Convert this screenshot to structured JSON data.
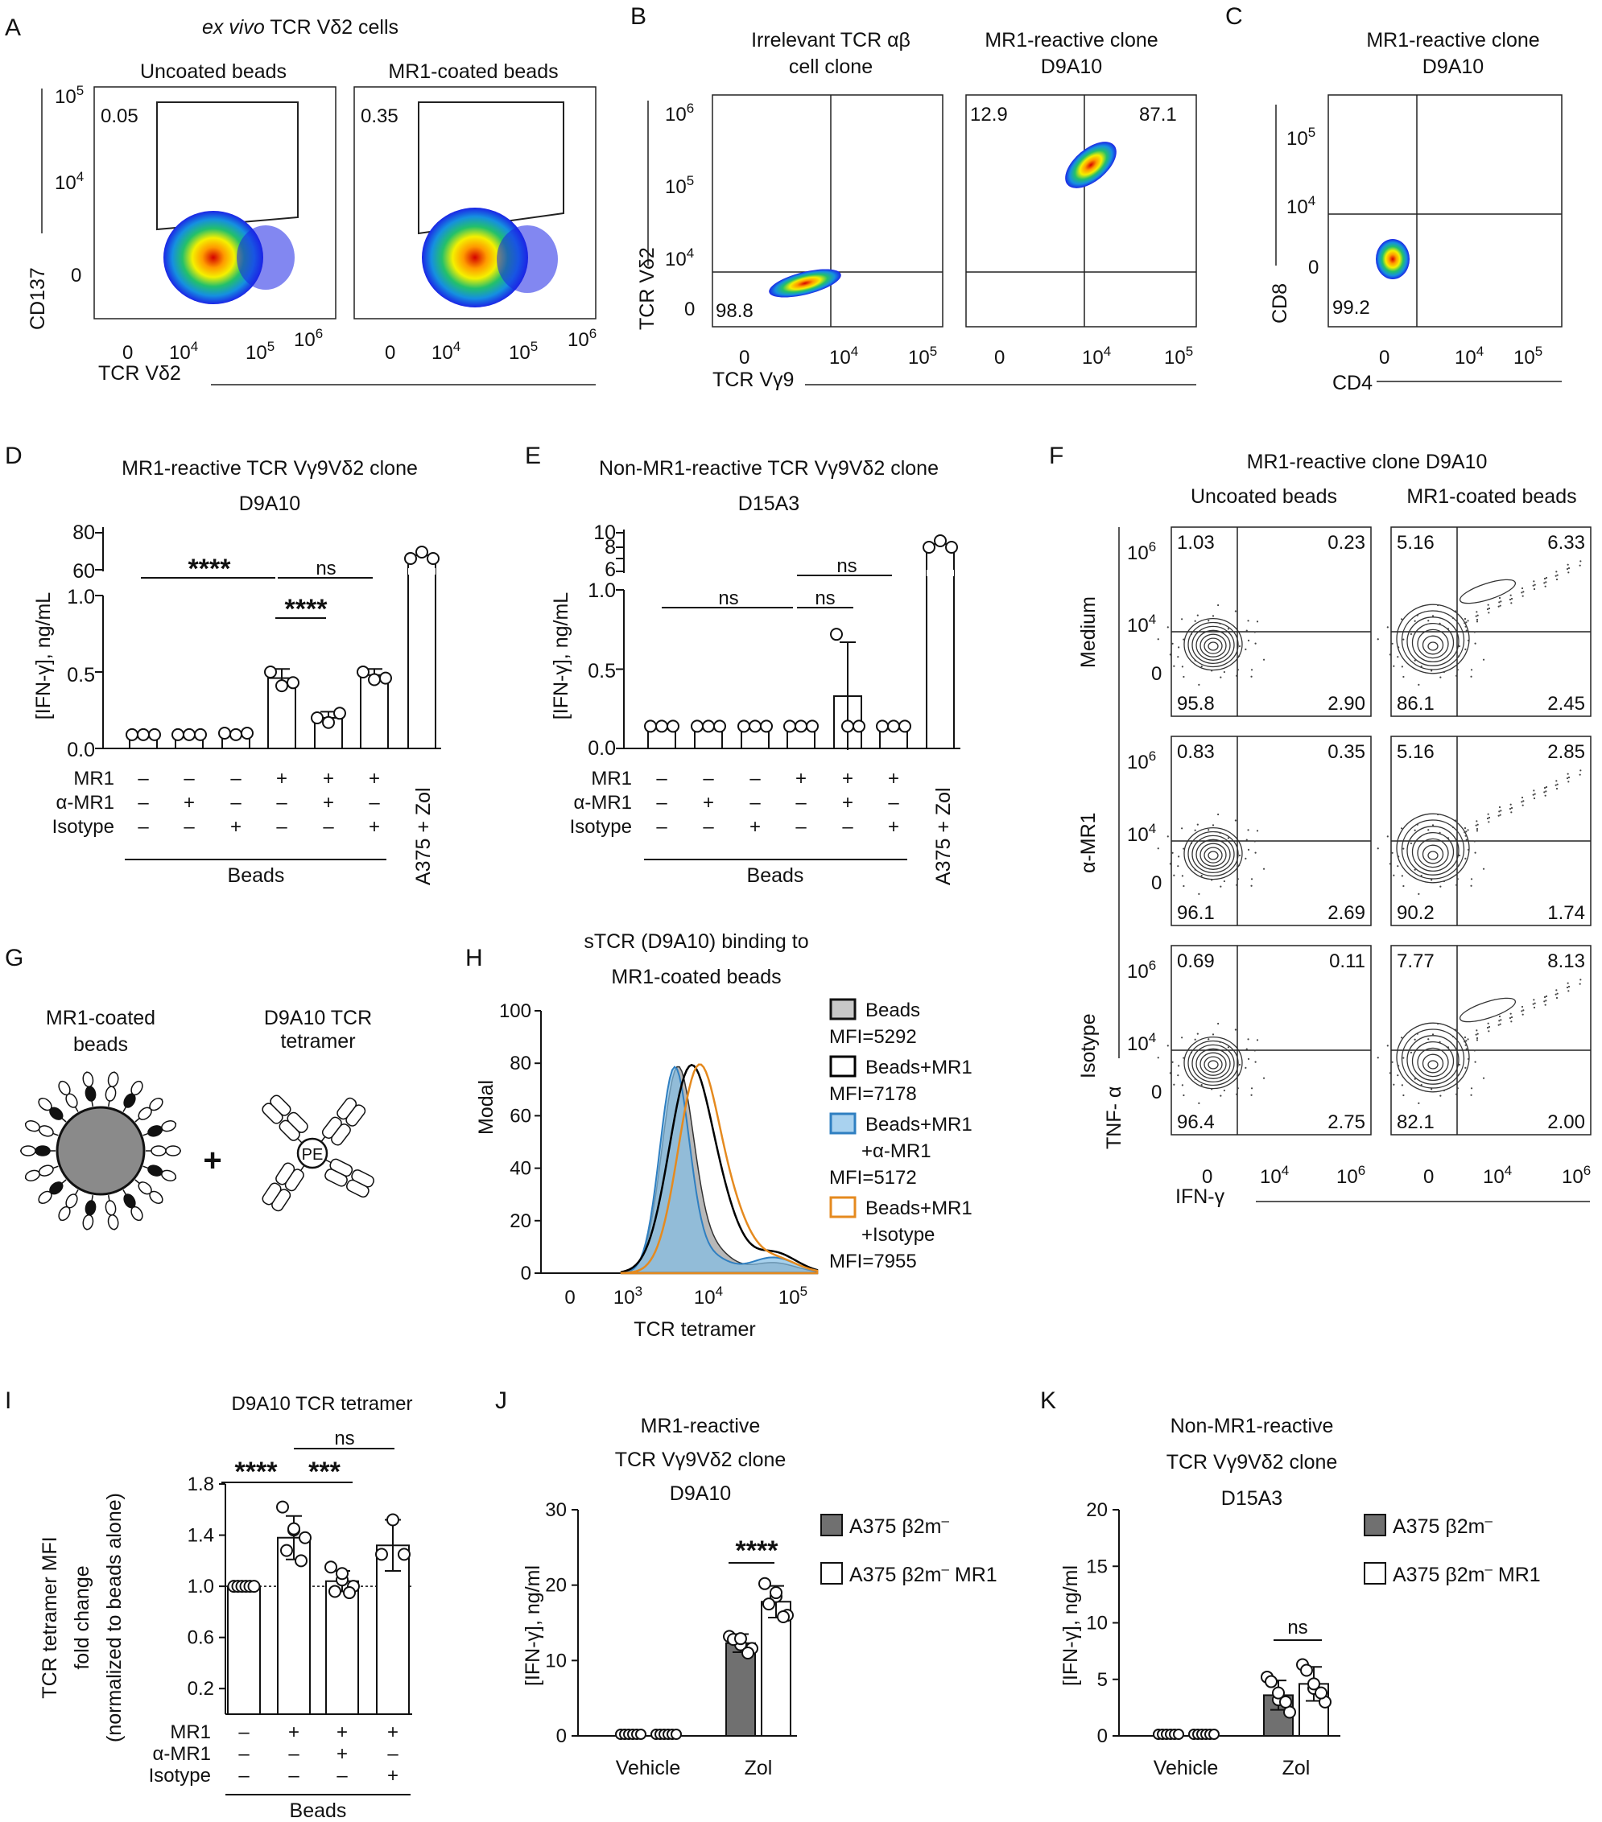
{
  "panels": {
    "A": {
      "letter": "A",
      "title_italic": "ex vivo",
      "title_rest": " TCR Vδ2 cells",
      "sub": [
        "Uncoated beads",
        "MR1-coated beads"
      ],
      "gate_values": [
        "0.05",
        "0.35"
      ],
      "ylabel": "CD137",
      "xlabel": "TCR Vδ2",
      "y_ticks": [
        "10",
        "10",
        "0"
      ],
      "y_exp": [
        "5",
        "4",
        ""
      ],
      "x_ticks": [
        "0",
        "10",
        "10",
        "10"
      ],
      "x_exp": [
        "",
        "4",
        "5",
        "6"
      ]
    },
    "B": {
      "letter": "B",
      "sub": [
        [
          "Irrelevant TCR αβ",
          "cell clone"
        ],
        [
          "MR1-reactive clone",
          "D9A10"
        ]
      ],
      "quad_values": [
        "98.8",
        "12.9",
        "87.1"
      ],
      "ylabel": "TCR Vδ2",
      "xlabel": "TCR Vγ9",
      "y_ticks": [
        "10",
        "10",
        "10",
        "0"
      ],
      "y_exp": [
        "6",
        "5",
        "4",
        ""
      ],
      "x_ticks": [
        "0",
        "10",
        "10"
      ],
      "x_exp": [
        "",
        "4",
        "5"
      ]
    },
    "C": {
      "letter": "C",
      "sub": [
        "MR1-reactive clone",
        "D9A10"
      ],
      "quad_values": [
        "99.2"
      ],
      "ylabel": "CD8",
      "xlabel": "CD4",
      "y_ticks": [
        "10",
        "10",
        "0"
      ],
      "y_exp": [
        "5",
        "4",
        ""
      ],
      "x_ticks": [
        "0",
        "10",
        "10"
      ],
      "x_exp": [
        "",
        "4",
        "5"
      ]
    },
    "D": {
      "letter": "D",
      "title": [
        "MR1-reactive TCR Vγ9Vδ2 clone",
        "D9A10"
      ],
      "ylabel": "[IFN-γ], ng/mL",
      "y_ticks": [
        "80",
        "60",
        "1.0",
        "0.5",
        "0.0"
      ],
      "sig": [
        "****",
        "ns",
        "****"
      ],
      "row_labels": [
        "MR1",
        "α-MR1",
        "Isotype"
      ],
      "signs": [
        [
          "–",
          "–",
          "–",
          "+",
          "+",
          "+"
        ],
        [
          "–",
          "+",
          "–",
          "–",
          "+",
          "–"
        ],
        [
          "–",
          "–",
          "+",
          "–",
          "–",
          "+"
        ]
      ],
      "group_label": "Beads",
      "control_label": "A375 + Zol"
    },
    "E": {
      "letter": "E",
      "title": [
        "Non-MR1-reactive TCR Vγ9Vδ2 clone",
        "D15A3"
      ],
      "ylabel": "[IFN-γ], ng/mL",
      "y_ticks": [
        "10",
        "8",
        "6",
        "1.0",
        "0.5",
        "0.0"
      ],
      "sig": [
        "ns",
        "ns",
        "ns"
      ],
      "row_labels": [
        "MR1",
        "α-MR1",
        "Isotype"
      ],
      "signs": [
        [
          "–",
          "–",
          "–",
          "+",
          "+",
          "+"
        ],
        [
          "–",
          "+",
          "–",
          "–",
          "+",
          "–"
        ],
        [
          "–",
          "–",
          "+",
          "–",
          "–",
          "+"
        ]
      ],
      "group_label": "Beads",
      "control_label": "A375 + Zol"
    },
    "F": {
      "letter": "F",
      "title": "MR1-reactive clone D9A10",
      "cols": [
        "Uncoated beads",
        "MR1-coated beads"
      ],
      "rows": [
        "Medium",
        "α-MR1",
        "Isotype"
      ],
      "quadrants": [
        [
          [
            "1.03",
            "0.23",
            "95.8",
            "2.90"
          ],
          [
            "5.16",
            "6.33",
            "86.1",
            "2.45"
          ]
        ],
        [
          [
            "0.83",
            "0.35",
            "96.1",
            "2.69"
          ],
          [
            "5.16",
            "2.85",
            "90.2",
            "1.74"
          ]
        ],
        [
          [
            "0.69",
            "0.11",
            "96.4",
            "2.75"
          ],
          [
            "7.77",
            "8.13",
            "82.1",
            "2.00"
          ]
        ]
      ],
      "ylabel": "TNF- α",
      "xlabel": "IFN-γ",
      "y_ticks": [
        "10",
        "10",
        "0"
      ],
      "y_exp": [
        "6",
        "4",
        ""
      ],
      "x_ticks": [
        "0",
        "10",
        "10"
      ],
      "x_exp": [
        "",
        "4",
        "6"
      ]
    },
    "G": {
      "letter": "G",
      "left": [
        "MR1-coated",
        "beads"
      ],
      "right": [
        "D9A10 TCR",
        "tetramer"
      ],
      "plus": "+",
      "pe": "PE"
    },
    "H": {
      "letter": "H",
      "title": [
        "sTCR (D9A10) binding to",
        "MR1-coated beads"
      ],
      "ylabel": "Modal",
      "xlabel": "TCR tetramer",
      "y_ticks": [
        "100",
        "80",
        "60",
        "40",
        "20",
        "0"
      ],
      "x_ticks": [
        "0",
        "10",
        "10",
        "10"
      ],
      "x_exp": [
        "",
        "3",
        "4",
        "5"
      ],
      "legend": [
        {
          "name": [
            "Beads"
          ],
          "mfi": "MFI=5292",
          "color": "#b8b8b8",
          "fill": true
        },
        {
          "name": [
            "Beads+MR1"
          ],
          "mfi": "MFI=7178",
          "color": "#000000",
          "fill": false
        },
        {
          "name": [
            "Beads+MR1",
            "+α-MR1"
          ],
          "mfi": "MFI=5172",
          "color": "#2f7fc1",
          "fill": true
        },
        {
          "name": [
            "Beads+MR1",
            "+Isotype"
          ],
          "mfi": "MFI=7955",
          "color": "#e58a1f",
          "fill": false
        }
      ]
    },
    "I": {
      "letter": "I",
      "title": "D9A10 TCR tetramer",
      "ylabel": [
        "TCR tetramer MFI",
        "fold change",
        "(normalized to beads alone)"
      ],
      "y_ticks": [
        "1.8",
        "1.4",
        "1.0",
        "0.6",
        "0.2"
      ],
      "sig": [
        "****",
        "***",
        "ns"
      ],
      "row_labels": [
        "MR1",
        "α-MR1",
        "Isotype"
      ],
      "signs": [
        [
          "–",
          "+",
          "+",
          "+"
        ],
        [
          "–",
          "–",
          "+",
          "–"
        ],
        [
          "–",
          "–",
          "–",
          "+"
        ]
      ],
      "group_label": "Beads"
    },
    "J": {
      "letter": "J",
      "title": [
        "MR1-reactive",
        "TCR Vγ9Vδ2 clone",
        "D9A10"
      ],
      "ylabel": "[IFN-γ], ng/ml",
      "y_ticks": [
        "30",
        "20",
        "10",
        "0"
      ],
      "groups": [
        "Vehicle",
        "Zol"
      ],
      "sig": "****",
      "legend": [
        "A375 β2m",
        "A375 β2m"
      ],
      "legend_suffix": [
        "",
        " MR1"
      ],
      "legend_sup": "–"
    },
    "K": {
      "letter": "K",
      "title": [
        "Non-MR1-reactive",
        "TCR Vγ9Vδ2 clone",
        "D15A3"
      ],
      "ylabel": "[IFN-γ], ng/ml",
      "y_ticks": [
        "20",
        "15",
        "10",
        "5",
        "0"
      ],
      "groups": [
        "Vehicle",
        "Zol"
      ],
      "sig": "ns",
      "legend": [
        "A375 β2m",
        "A375 β2m"
      ],
      "legend_suffix": [
        "",
        " MR1"
      ],
      "legend_sup": "–"
    }
  },
  "chart_data": [
    {
      "panel": "D",
      "type": "bar",
      "categories": [
        "Beads",
        "Beads+α-MR1",
        "Beads+Isotype",
        "MR1 beads",
        "MR1 beads+α-MR1",
        "MR1 beads+Isotype",
        "A375 + Zol"
      ],
      "values": [
        0.09,
        0.09,
        0.1,
        0.46,
        0.2,
        0.48,
        72
      ],
      "ylabel": "[IFN-γ], ng/mL"
    },
    {
      "panel": "E",
      "type": "bar",
      "categories": [
        "Beads",
        "Beads+α-MR1",
        "Beads+Isotype",
        "MR1 beads",
        "MR1 beads+α-MR1",
        "MR1 beads+Isotype",
        "A375 + Zol"
      ],
      "values": [
        0.14,
        0.14,
        0.14,
        0.14,
        0.33,
        0.14,
        8.2
      ],
      "ylabel": "[IFN-γ], ng/mL"
    },
    {
      "panel": "H",
      "type": "line",
      "title": "sTCR (D9A10) binding to MR1-coated beads",
      "xlabel": "TCR tetramer",
      "ylabel": "Modal",
      "ylim": [
        0,
        100
      ],
      "series": [
        {
          "name": "Beads",
          "mfi": 5292
        },
        {
          "name": "Beads+MR1",
          "mfi": 7178
        },
        {
          "name": "Beads+MR1+α-MR1",
          "mfi": 5172
        },
        {
          "name": "Beads+MR1+Isotype",
          "mfi": 7955
        }
      ]
    },
    {
      "panel": "I",
      "type": "bar",
      "title": "D9A10 TCR tetramer",
      "categories": [
        "Beads",
        "Beads+MR1",
        "Beads+MR1+α-MR1",
        "Beads+MR1+Isotype"
      ],
      "values": [
        1.0,
        1.38,
        1.04,
        1.32
      ],
      "ylim": [
        0,
        1.8
      ]
    },
    {
      "panel": "J",
      "type": "bar",
      "categories": [
        "Vehicle",
        "Zol"
      ],
      "series": [
        {
          "name": "A375 β2m–",
          "values": [
            0.1,
            12.3
          ]
        },
        {
          "name": "A375 β2m– MR1",
          "values": [
            0.1,
            17.8
          ]
        }
      ],
      "ylim": [
        0,
        30
      ],
      "ylabel": "[IFN-γ], ng/ml"
    },
    {
      "panel": "K",
      "type": "bar",
      "categories": [
        "Vehicle",
        "Zol"
      ],
      "series": [
        {
          "name": "A375 β2m–",
          "values": [
            0.1,
            3.6
          ]
        },
        {
          "name": "A375 β2m– MR1",
          "values": [
            0.1,
            4.6
          ]
        }
      ],
      "ylim": [
        0,
        20
      ],
      "ylabel": "[IFN-γ], ng/ml"
    }
  ]
}
